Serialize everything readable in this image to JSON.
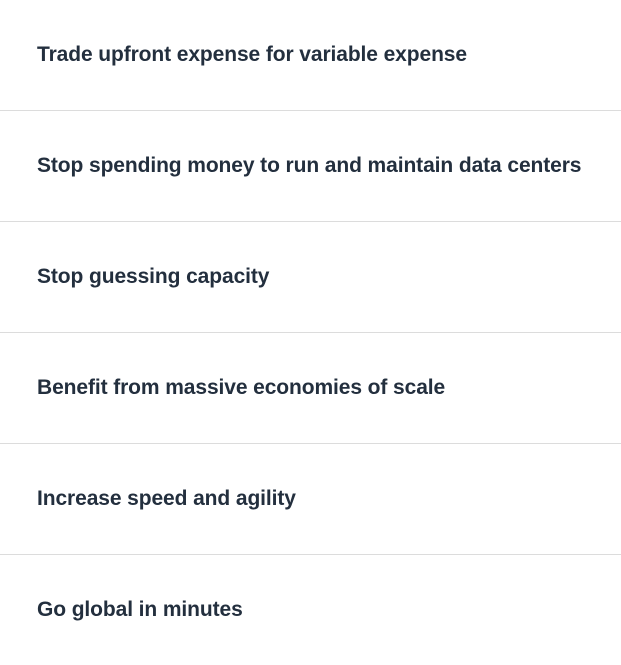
{
  "benefits": {
    "items": [
      {
        "label": "Trade upfront expense for variable expense"
      },
      {
        "label": "Stop spending money to run and maintain data centers"
      },
      {
        "label": "Stop guessing capacity"
      },
      {
        "label": "Benefit from massive economies of scale"
      },
      {
        "label": "Increase speed and agility"
      },
      {
        "label": "Go global in minutes"
      }
    ]
  }
}
